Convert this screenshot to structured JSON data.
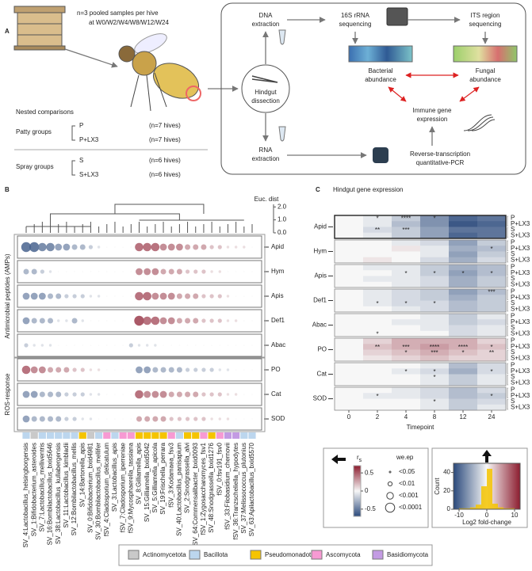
{
  "panel_a": {
    "label": "A",
    "sampling": [
      "n=3 pooled samples per hive",
      "at W0/W2/W4/W8/W12/W24"
    ],
    "comparisons_title": "Nested comparisons",
    "groups": [
      {
        "name": "Patty groups",
        "items": [
          {
            "name": "P",
            "n": "(n=7 hives)"
          },
          {
            "name": "P+LX3",
            "n": "(n=7 hives)"
          }
        ]
      },
      {
        "name": "Spray groups",
        "items": [
          {
            "name": "S",
            "n": "(n=6 hives)"
          },
          {
            "name": "S+LX3",
            "n": "(n=6 hives)"
          }
        ]
      }
    ],
    "workflow": {
      "dissection": [
        "Hindgut",
        "dissection"
      ],
      "dna": [
        "DNA",
        "extraction"
      ],
      "rna": [
        "RNA",
        "extraction"
      ],
      "seq16s": [
        "16S rRNA",
        "sequencing"
      ],
      "its": [
        "ITS region",
        "sequencing"
      ],
      "bacterial": [
        "Bacterial",
        "abundance"
      ],
      "fungal": [
        "Fungal",
        "abundance"
      ],
      "immune": [
        "Immune gene",
        "expression"
      ],
      "rtqpcr": [
        "Reverse-transcription",
        "quantitative-PCR"
      ]
    }
  },
  "panel_b": {
    "label": "B",
    "dendrogram_axis": {
      "label": "Euc. dist",
      "lim": [
        0,
        2.2
      ],
      "ticks": [
        {
          "value": 2,
          "label": "2.0"
        },
        {
          "value": 1,
          "label": "1.0"
        },
        {
          "value": 0,
          "label": "0.0"
        }
      ]
    },
    "group_labels": [
      "Antimicrobial peptides (AMPs)",
      "ROS-response"
    ],
    "genes": [
      "Apid",
      "Hym",
      "Apis",
      "Def1",
      "Abac",
      "PO",
      "Cat",
      "SOD"
    ],
    "taxa": [
      {
        "name": "SV_4:Lactobacillus_helsingborgensis",
        "phylum": "Bacillota"
      },
      {
        "name": "SV_1:Bifidobacterium_asteroides",
        "phylum": "Actinomycetota"
      },
      {
        "name": "SV_7:Lactobacillus_melliventris",
        "phylum": "Bacillota"
      },
      {
        "name": "SV_16:Bombilactobacillus_bxid5646",
        "phylum": "Bacillota"
      },
      {
        "name": "SV_38:Lactobacillus_kullabergensis",
        "phylum": "Bacillota"
      },
      {
        "name": "SV_11:Lactobacillus_kimbladii",
        "phylum": "Bacillota"
      },
      {
        "name": "SV_12:Bombilactobacillus_mellis",
        "phylum": "Bacillota"
      },
      {
        "name": "SV_14:Bartonella_apis",
        "phylum": "Pseudomonadota"
      },
      {
        "name": "SV_0:Bifidobacterium_bxid4981",
        "phylum": "Actinomycetota"
      },
      {
        "name": "SV_30:Bombilactobacillus_mellifer",
        "phylum": "Bacillota"
      },
      {
        "name": "fSV_4:Cladosporium_delicatulum",
        "phylum": "Ascomycota"
      },
      {
        "name": "SV_3:Lactobacillus_apis",
        "phylum": "Bacillota"
      },
      {
        "name": "fSV_7:Cladosporium_iperreniae",
        "phylum": "Ascomycota"
      },
      {
        "name": "fSV_9:Mycosphaerella_tassiana",
        "phylum": "Ascomycota"
      },
      {
        "name": "SV_8:Gilliamella_apis",
        "phylum": "Pseudomonadota"
      },
      {
        "name": "SV_15:Gilliamella_bxid5042",
        "phylum": "Pseudomonadota"
      },
      {
        "name": "SV_5:Gilliamella_apicola",
        "phylum": "Pseudomonadota"
      },
      {
        "name": "SV_19:Frischella_perrara",
        "phylum": "Pseudomonadota"
      },
      {
        "name": "fSV_3:Kodamaea_fsv3",
        "phylum": "Ascomycota"
      },
      {
        "name": "SV_40:Lactobacillus_panisapium",
        "phylum": "Bacillota"
      },
      {
        "name": "SV_2:Snodgrassella_alvi",
        "phylum": "Pseudomonadota"
      },
      {
        "name": "SV_64:Commensalibacter_bxid0093",
        "phylum": "Pseudomonadota"
      },
      {
        "name": "fSV_1:Zygosaccharomyces_fsv1",
        "phylum": "Ascomycota"
      },
      {
        "name": "SV_48:Snodgrassella_bxid1276",
        "phylum": "Pseudomonadota"
      },
      {
        "name": "fSV_0:fsv191_fsv0",
        "phylum": "Ascomycota"
      },
      {
        "name": "fSV_33:Filobasidium_chernovii",
        "phylum": "Basidiomycota"
      },
      {
        "name": "fSV_36:Tranzscheliella_hypodytes",
        "phylum": "Basidiomycota"
      },
      {
        "name": "SV_37:Melissococcus_plutonius",
        "phylum": "Bacillota"
      },
      {
        "name": "SV_63:Apilactobacillus_bxid5570",
        "phylum": "Bacillota"
      }
    ],
    "rs_lim": [
      -0.7,
      0.7
    ],
    "rs": [
      [
        -0.6,
        -0.6,
        -0.5,
        -0.5,
        -0.4,
        -0.4,
        -0.3,
        -0.3,
        -0.2,
        -0.1,
        0,
        0,
        0,
        0,
        0.5,
        0.5,
        0.5,
        0.4,
        0.4,
        0.4,
        0.3,
        0.3,
        0.3,
        0.2,
        0.2,
        0.1,
        0.1,
        0.1,
        0
      ],
      [
        -0.3,
        -0.3,
        -0.2,
        -0.1,
        0,
        0,
        0,
        0,
        0,
        0,
        0,
        0,
        0,
        0,
        0.4,
        0.4,
        0.4,
        0.3,
        0.3,
        0.3,
        0.2,
        0.2,
        0.2,
        0.1,
        0.1,
        0,
        0,
        0,
        0
      ],
      [
        -0.4,
        -0.4,
        -0.4,
        -0.3,
        -0.3,
        -0.2,
        -0.2,
        -0.2,
        -0.1,
        -0.1,
        0,
        0,
        0,
        0,
        0.5,
        0.5,
        0.4,
        0.4,
        0.4,
        0.3,
        0.3,
        0.3,
        0.2,
        0.2,
        0.2,
        0.1,
        0,
        0,
        0
      ],
      [
        -0.4,
        -0.3,
        -0.3,
        -0.3,
        -0.1,
        -0.1,
        -0.3,
        -0.1,
        0,
        0,
        0,
        0,
        0,
        0,
        0.6,
        0.5,
        0.5,
        0.4,
        0.4,
        0.3,
        0.3,
        0.3,
        0.2,
        0.2,
        0.2,
        0.1,
        0.1,
        0,
        0
      ],
      [
        -0.2,
        -0.1,
        -0.1,
        -0.1,
        0,
        0,
        0,
        0,
        0,
        0,
        0,
        0,
        0,
        -0.2,
        -0.1,
        -0.1,
        -0.1,
        0,
        0,
        0,
        0,
        0,
        0,
        0,
        0,
        0,
        0,
        0,
        0
      ],
      [
        0.5,
        0.4,
        0.4,
        0.3,
        0.3,
        0.3,
        0.2,
        0.2,
        0.1,
        0.1,
        0,
        0,
        0,
        0,
        -0.4,
        -0.4,
        -0.3,
        -0.3,
        -0.3,
        -0.3,
        -0.2,
        -0.2,
        -0.2,
        -0.2,
        -0.1,
        -0.1,
        0,
        0,
        0
      ],
      [
        -0.4,
        -0.4,
        -0.3,
        -0.3,
        -0.3,
        -0.2,
        -0.2,
        -0.2,
        -0.1,
        -0.1,
        0,
        0,
        0,
        0,
        0.5,
        0.4,
        0.4,
        0.4,
        0.3,
        0.3,
        0.3,
        0.3,
        0.2,
        0.2,
        0.2,
        0.1,
        0.1,
        0,
        0
      ],
      [
        -0.4,
        -0.3,
        -0.3,
        -0.3,
        -0.3,
        -0.2,
        -0.2,
        -0.1,
        -0.1,
        0,
        0,
        0,
        0,
        0,
        0.3,
        0.3,
        0.3,
        0.3,
        0.2,
        0.2,
        0.2,
        0.2,
        0.2,
        0.1,
        0.1,
        0.1,
        0,
        0,
        0
      ]
    ]
  },
  "phyla": [
    {
      "name": "Actinomycetota",
      "color": "#c9c9c9"
    },
    {
      "name": "Bacillota",
      "color": "#bcd6ee"
    },
    {
      "name": "Pseudomonadota",
      "color": "#f5c400"
    },
    {
      "name": "Ascomycota",
      "color": "#f79ad3"
    },
    {
      "name": "Basidiomycota",
      "color": "#c39be3"
    }
  ],
  "panel_c": {
    "label": "C",
    "title": "Hindgut gene expression",
    "x_label": "Timepoint",
    "timepoints": [
      0,
      2,
      4,
      8,
      12,
      24
    ],
    "groups": [
      "P",
      "P+LX3",
      "S",
      "S+LX3"
    ],
    "genes": [
      {
        "values": [
          [
            0,
            -1,
            -3,
            -7,
            -10,
            -9
          ],
          [
            0,
            -1,
            -4,
            -7,
            -11,
            -10
          ],
          [
            0,
            -2,
            -3,
            -6,
            -9,
            -9
          ],
          [
            0,
            -1,
            -3,
            -6,
            -10,
            -9
          ]
        ],
        "stars": [
          [
            null,
            "*",
            "****",
            "*",
            null,
            null
          ],
          [
            null,
            null,
            null,
            null,
            null,
            null
          ],
          [
            null,
            "**",
            "***",
            null,
            null,
            null
          ],
          [
            null,
            null,
            null,
            null,
            null,
            null
          ]
        ]
      },
      {
        "values": [
          [
            0,
            0,
            -1,
            -2,
            -6,
            -3
          ],
          [
            0,
            0,
            1,
            -1,
            -5,
            -4
          ],
          [
            0,
            0,
            0,
            -1,
            -6,
            -3
          ],
          [
            0,
            1,
            0,
            -2,
            -5,
            -2
          ]
        ],
        "stars": [
          [
            null,
            null,
            null,
            null,
            null,
            null
          ],
          [
            null,
            null,
            null,
            null,
            null,
            "*"
          ],
          [
            null,
            null,
            null,
            null,
            null,
            null
          ],
          [
            null,
            null,
            null,
            null,
            null,
            null
          ]
        ]
      },
      {
        "values": [
          [
            0,
            -1,
            -1,
            -3,
            -5,
            -4
          ],
          [
            0,
            0,
            -1,
            -3,
            -6,
            -4
          ],
          [
            0,
            -1,
            -1,
            -2,
            -5,
            -3
          ],
          [
            0,
            0,
            -1,
            -2,
            -5,
            -3
          ]
        ],
        "stars": [
          [
            null,
            null,
            null,
            null,
            null,
            null
          ],
          [
            null,
            null,
            "*",
            "*",
            "*",
            "*"
          ],
          [
            null,
            null,
            null,
            null,
            null,
            null
          ],
          [
            null,
            null,
            null,
            null,
            null,
            null
          ]
        ]
      },
      {
        "values": [
          [
            0,
            -1,
            -2,
            -3,
            -6,
            -4
          ],
          [
            0,
            -1,
            -2,
            -3,
            -5,
            -3
          ],
          [
            0,
            -1,
            -2,
            -2,
            -4,
            -3
          ],
          [
            0,
            0,
            -1,
            -2,
            -4,
            -3
          ]
        ],
        "stars": [
          [
            null,
            null,
            null,
            null,
            null,
            "***"
          ],
          [
            null,
            null,
            null,
            null,
            null,
            null
          ],
          [
            null,
            "*",
            "*",
            "*",
            null,
            null
          ],
          [
            null,
            null,
            null,
            null,
            null,
            null
          ]
        ]
      },
      {
        "values": [
          [
            0,
            0,
            0,
            -1,
            -3,
            -1
          ],
          [
            0,
            0,
            -1,
            -1,
            -3,
            -2
          ],
          [
            0,
            0,
            0,
            -1,
            -2,
            -1
          ],
          [
            0,
            0,
            0,
            0,
            -2,
            -1
          ]
        ],
        "stars": [
          [
            null,
            null,
            null,
            null,
            null,
            null
          ],
          [
            null,
            null,
            null,
            null,
            null,
            null
          ],
          [
            null,
            null,
            null,
            null,
            null,
            null
          ],
          [
            null,
            "*",
            null,
            null,
            null,
            null
          ]
        ]
      },
      {
        "values": [
          [
            0,
            2,
            4,
            4,
            4,
            2
          ],
          [
            0,
            3,
            4,
            5,
            4,
            3
          ],
          [
            0,
            2,
            3,
            4,
            3,
            2
          ],
          [
            0,
            1,
            2,
            3,
            2,
            2
          ]
        ],
        "stars": [
          [
            null,
            null,
            null,
            null,
            null,
            null
          ],
          [
            null,
            "**",
            "***",
            "****",
            "****",
            "*"
          ],
          [
            null,
            null,
            "*",
            "***",
            "*",
            "**"
          ],
          [
            null,
            null,
            null,
            null,
            null,
            null
          ]
        ]
      },
      {
        "values": [
          [
            0,
            0,
            0,
            -1,
            -4,
            -2
          ],
          [
            0,
            0,
            -1,
            -2,
            -5,
            -2
          ],
          [
            0,
            0,
            0,
            -1,
            -3,
            -1
          ],
          [
            0,
            0,
            0,
            -1,
            -3,
            -1
          ]
        ],
        "stars": [
          [
            null,
            null,
            null,
            null,
            null,
            null
          ],
          [
            null,
            null,
            "*",
            "*",
            null,
            "*"
          ],
          [
            null,
            null,
            null,
            "*",
            null,
            null
          ],
          [
            null,
            null,
            null,
            null,
            null,
            null
          ]
        ]
      },
      {
        "values": [
          [
            0,
            0,
            -1,
            -2,
            -4,
            -2
          ],
          [
            0,
            -1,
            -1,
            -2,
            -4,
            -3
          ],
          [
            0,
            0,
            0,
            -1,
            -3,
            -2
          ],
          [
            0,
            0,
            0,
            -1,
            -3,
            -1
          ]
        ],
        "stars": [
          [
            null,
            null,
            null,
            null,
            null,
            null
          ],
          [
            null,
            "*",
            null,
            null,
            null,
            "*"
          ],
          [
            null,
            null,
            null,
            "*",
            null,
            null
          ],
          [
            null,
            null,
            null,
            null,
            null,
            null
          ]
        ]
      }
    ]
  },
  "legend": {
    "rs": {
      "label": "r",
      "sub": "s",
      "ticks": [
        0.5,
        0,
        -0.5
      ]
    },
    "weep": {
      "label": "we.ep",
      "levels": [
        "<0.05",
        "<0.01",
        "<0.001",
        "<0.0001"
      ]
    },
    "hist": {
      "y_label": "Count",
      "x_label": "Log2 fold-change",
      "bins": [
        -12,
        -10,
        -8,
        -6,
        -4,
        -2,
        0,
        2,
        4,
        6,
        8,
        10,
        12
      ],
      "counts": [
        0,
        1,
        1,
        2,
        5,
        25,
        44,
        6,
        2,
        1,
        1,
        0
      ],
      "ylim": [
        0,
        50
      ],
      "yticks": [
        0,
        20,
        40
      ],
      "xlim": [
        -12,
        12
      ],
      "xticks": [
        -10,
        0,
        10
      ]
    }
  }
}
